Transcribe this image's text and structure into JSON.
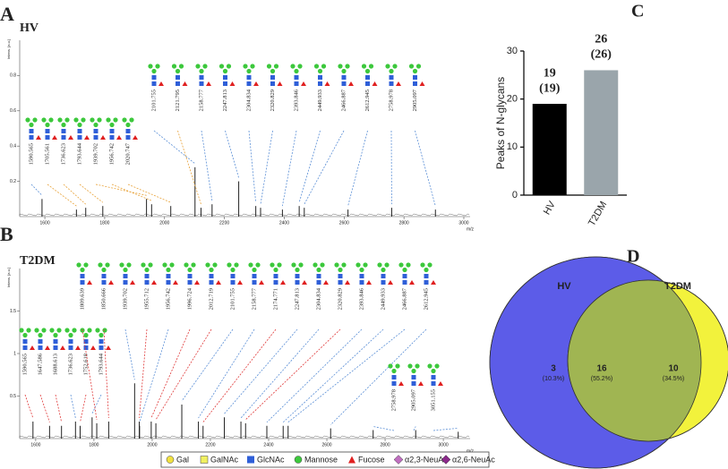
{
  "chart_data": [
    {
      "type": "spectrum",
      "panel": "A",
      "title": "HV",
      "y_label": "Intens. [a.u.]",
      "x_label": "m/z",
      "xlim": [
        1516,
        3021
      ],
      "xticks": [
        1600,
        1800,
        2000,
        2200,
        2400,
        2600,
        2800,
        3000
      ],
      "ylim": [
        0,
        1
      ],
      "yticks": [
        0.2,
        0.4,
        0.6,
        0.8
      ],
      "color": "#222222",
      "x": [
        1590.565,
        1705.561,
        1736.623,
        1793.644,
        1939.702,
        1956.742,
        2020.747,
        2101.755,
        2121.795,
        2158.777,
        2247.813,
        2304.834,
        2320.829,
        2393.846,
        2449.933,
        2466.887,
        2612.945,
        2758.978,
        2905.097
      ],
      "values": [
        0.1,
        0.04,
        0.05,
        0.06,
        0.1,
        0.07,
        0.06,
        0.28,
        0.05,
        0.07,
        0.2,
        0.06,
        0.05,
        0.04,
        0.06,
        0.05,
        0.04,
        0.05,
        0.04
      ],
      "link_colors": [
        "#5b8fd6",
        "#e8a33a",
        "#e8a33a",
        "#e8a33a",
        "#e8a33a",
        "#e8a33a",
        "#e8a33a",
        "#5b8fd6",
        "#e8a33a",
        "#5b8fd6",
        "#5b8fd6",
        "#5b8fd6",
        "#5b8fd6",
        "#5b8fd6",
        "#5b8fd6",
        "#5b8fd6",
        "#5b8fd6",
        "#5b8fd6",
        "#5b8fd6"
      ]
    },
    {
      "type": "spectrum",
      "panel": "B",
      "title": "T2DM",
      "y_label": "Intens. [a.u.]",
      "x_label": "m/z",
      "xlim": [
        1545,
        3092
      ],
      "xticks": [
        1600,
        1800,
        2000,
        2200,
        2400,
        2600,
        2800,
        3000
      ],
      "ylim": [
        0,
        2
      ],
      "yticks": [
        0.5,
        1.0,
        1.5
      ],
      "color": "#222222",
      "x": [
        1590.565,
        1647.586,
        1688.613,
        1736.623,
        1752.618,
        1793.644,
        1809.639,
        1850.666,
        1939.702,
        1955.712,
        1956.742,
        1996.724,
        2012.719,
        2101.755,
        2158.777,
        2174.771,
        2247.813,
        2304.834,
        2320.829,
        2393.846,
        2449.933,
        2466.887,
        2612.945,
        2758.978,
        2905.097,
        3051.155
      ],
      "values": [
        0.2,
        0.15,
        0.15,
        0.2,
        0.15,
        0.25,
        0.18,
        0.2,
        0.65,
        0.2,
        0.15,
        0.2,
        0.18,
        0.4,
        0.2,
        0.15,
        0.25,
        0.2,
        0.18,
        0.15,
        0.15,
        0.15,
        0.12,
        0.1,
        0.1,
        0.08
      ],
      "link_colors": [
        "#e03a3a",
        "#e03a3a",
        "#e03a3a",
        "#5b8fd6",
        "#e03a3a",
        "#5b8fd6",
        "#e03a3a",
        "#e03a3a",
        "#5b8fd6",
        "#e03a3a",
        "#5b8fd6",
        "#e03a3a",
        "#e03a3a",
        "#5b8fd6",
        "#5b8fd6",
        "#e03a3a",
        "#5b8fd6",
        "#5b8fd6",
        "#e03a3a",
        "#5b8fd6",
        "#5b8fd6",
        "#5b8fd6",
        "#5b8fd6",
        "#5b8fd6",
        "#5b8fd6",
        "#5b8fd6"
      ]
    },
    {
      "type": "bar",
      "panel": "C",
      "y_label": "Peaks of N-glycans",
      "categories": [
        "HV",
        "T2DM"
      ],
      "values": [
        19,
        26
      ],
      "value_labels": [
        "(19)",
        "(26)"
      ],
      "value_label_color": "#e02020",
      "colors": [
        "#000000",
        "#9aa5ab"
      ],
      "ylim": [
        0,
        30
      ],
      "yticks": [
        0,
        10,
        20,
        30
      ]
    },
    {
      "type": "venn",
      "panel": "D",
      "sets": [
        {
          "name": "HV",
          "color": "#5c5ce8",
          "label_color": "#4a4ad0"
        },
        {
          "name": "T2DM",
          "color": "#f2f23c",
          "label_color": "#7a8a2a"
        }
      ],
      "overlap_color": "#a0b552",
      "values": [
        3,
        16,
        10
      ],
      "percent_labels": [
        "(10.3%)",
        "(55.2%)",
        "(34.5%)"
      ]
    }
  ],
  "legend": [
    "Gal",
    "GalNAc",
    "GlcNAc",
    "Mannose",
    "Fucose",
    "α2,3-NeuAc",
    "α2,6-NeuAc"
  ]
}
